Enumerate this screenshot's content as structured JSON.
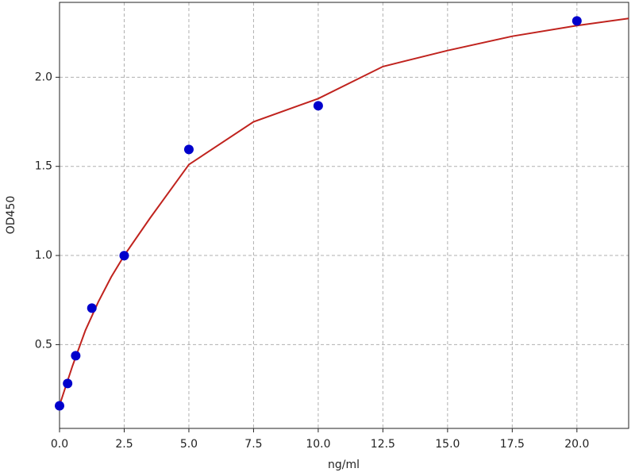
{
  "chart_data": {
    "type": "scatter",
    "x_label": "ng/ml",
    "y_label": "OD450",
    "points": {
      "x": [
        0,
        0.3125,
        0.625,
        1.25,
        2.5,
        5,
        10,
        20
      ],
      "y": [
        0.157,
        0.282,
        0.438,
        0.705,
        0.999,
        1.595,
        1.84,
        2.316
      ],
      "color": "#0000cc"
    },
    "fit": {
      "x": [
        0,
        0.5,
        1,
        1.5,
        2,
        2.5,
        3.5,
        5,
        7.5,
        10,
        12.5,
        15,
        17.5,
        20,
        22
      ],
      "y": [
        0.16,
        0.38,
        0.58,
        0.74,
        0.88,
        1.0,
        1.21,
        1.51,
        1.75,
        1.88,
        2.06,
        2.15,
        2.23,
        2.29,
        2.33
      ],
      "color": "#c0231e"
    },
    "xlim": [
      0,
      22
    ],
    "ylim": [
      0.03,
      2.42
    ],
    "xticks": [
      {
        "value": 0,
        "label": "0.0"
      },
      2.5,
      {
        "value": 5,
        "label": "5.0"
      },
      7.5,
      {
        "value": 10,
        "label": "10.0"
      },
      12.5,
      {
        "value": 15,
        "label": "15.0"
      },
      17.5,
      {
        "value": 20,
        "label": "20.0"
      }
    ],
    "yticks": [
      0.5,
      {
        "value": 1,
        "label": "1.0"
      },
      1.5,
      {
        "value": 2,
        "label": "2.0"
      }
    ],
    "grid": true
  }
}
